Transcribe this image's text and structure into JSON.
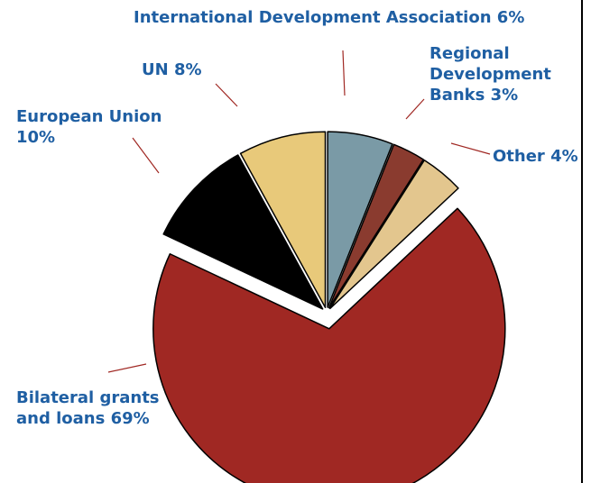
{
  "chart_data": {
    "type": "pie",
    "title": "",
    "slices": [
      {
        "label_lines": [
          "International Development Association 6%"
        ],
        "value": 6,
        "color": "#7a9aa6"
      },
      {
        "label_lines": [
          "Regional",
          "Development",
          "Banks 3%"
        ],
        "value": 3,
        "color": "#8a3b2f"
      },
      {
        "label_lines": [
          "Other 4%"
        ],
        "value": 4,
        "color": "#e3c68e"
      },
      {
        "label_lines": [
          "Bilateral grants",
          "and loans 69%"
        ],
        "value": 69,
        "color": "#a02823"
      },
      {
        "label_lines": [
          "European Union",
          "10%"
        ],
        "value": 10,
        "color": "#000000"
      },
      {
        "label_lines": [
          "UN 8%"
        ],
        "value": 8,
        "color": "#e8c97a"
      }
    ],
    "label_color": "#1f5fa3",
    "leader_color": "#a02823",
    "exploded": true
  }
}
